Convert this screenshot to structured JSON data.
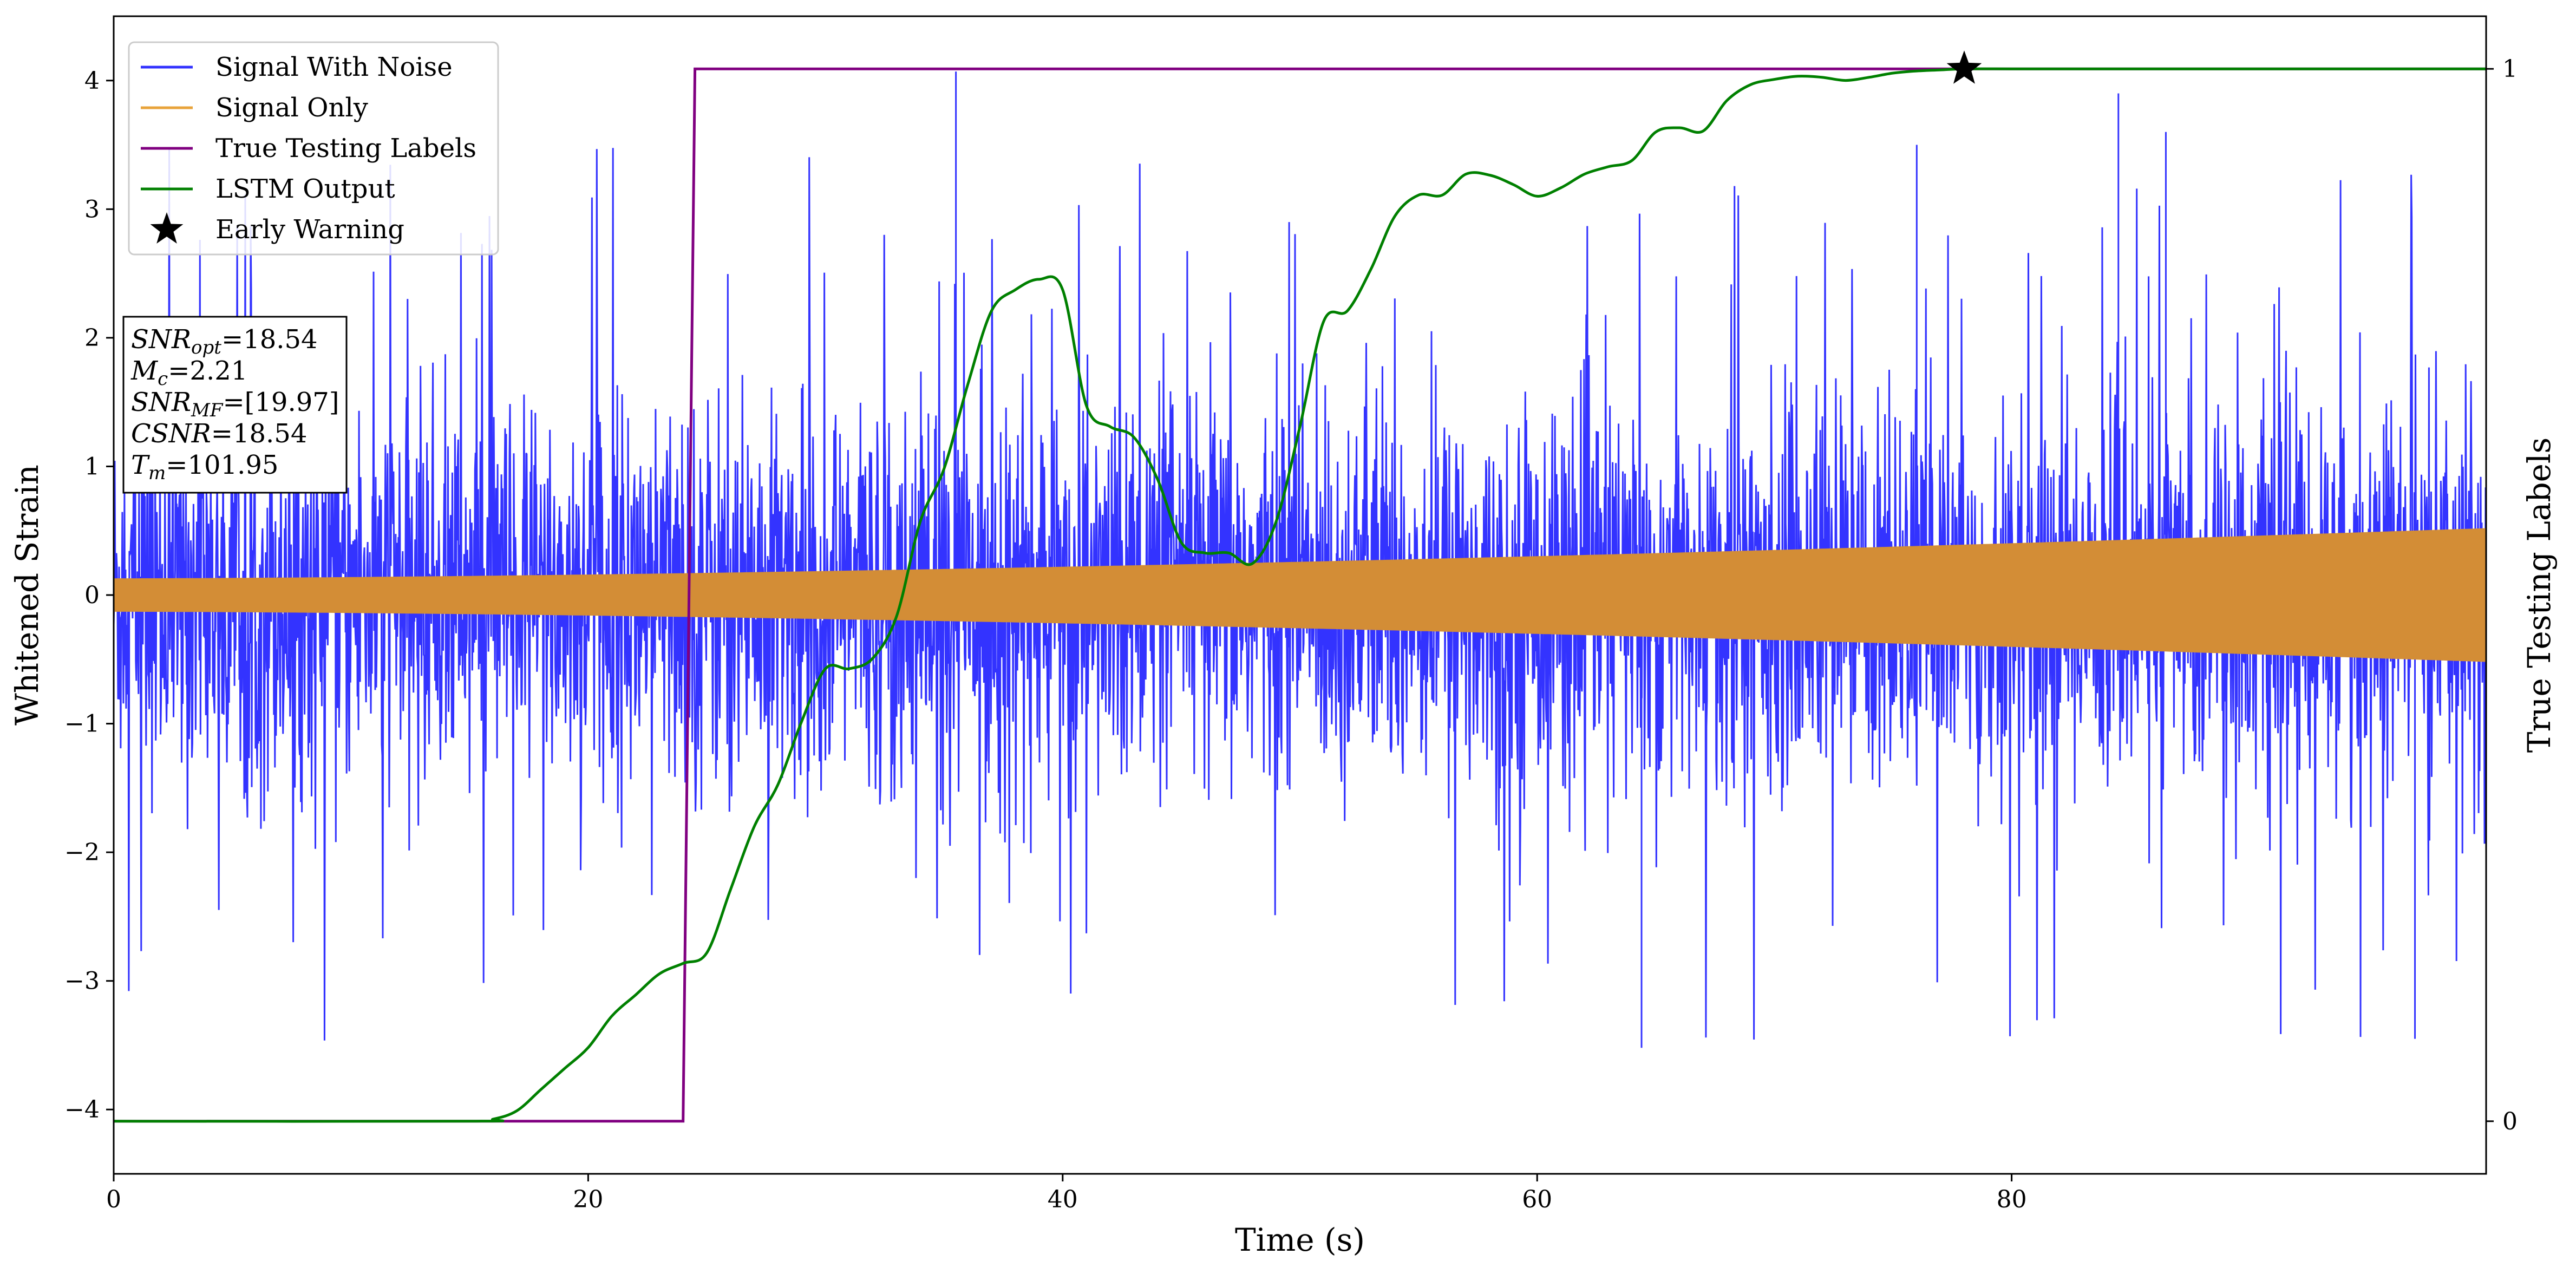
{
  "chart_data": {
    "type": "line",
    "xlabel": "Time (s)",
    "ylabel": "Whitened Strain",
    "y2label": "True Testing Labels",
    "xlim": [
      0,
      100
    ],
    "ylim": [
      -4.5,
      4.5
    ],
    "y2lim": [
      -0.05,
      1.05
    ],
    "xticks": [
      0,
      20,
      40,
      60,
      80
    ],
    "yticks": [
      -4,
      -3,
      -2,
      -1,
      0,
      1,
      2,
      3,
      4
    ],
    "y2ticks": [
      0,
      1
    ],
    "legend_position": "top-left",
    "grid": false,
    "series": [
      {
        "name": "Signal With Noise",
        "color": "#3333ff",
        "description_range": "noise approx. -3.5 to 4.1",
        "envelope": {
          "typical_max": 2.4,
          "typical_min": -2.3,
          "peak_max": 4.07,
          "peak_min": -3.52
        }
      },
      {
        "name": "Signal Only",
        "color": "#e8a33a",
        "amplitude_start": 0.13,
        "amplitude_end": 0.52
      },
      {
        "name": "True Testing Labels",
        "color": "#800080",
        "axis": "right",
        "x": [
          0,
          24,
          24.5,
          100
        ],
        "y": [
          0,
          0,
          1,
          1
        ]
      },
      {
        "name": "LSTM Output",
        "color": "#008000",
        "axis": "right",
        "x": [
          0,
          15,
          16,
          17,
          18,
          19,
          20,
          21,
          22,
          23,
          24,
          25,
          26,
          27,
          28,
          29,
          30,
          31,
          32,
          33,
          34,
          35,
          36,
          37,
          38,
          39,
          40,
          41,
          42,
          43,
          44,
          45,
          46,
          47,
          48,
          49,
          50,
          51,
          52,
          53,
          54,
          55,
          56,
          57,
          58,
          59,
          60,
          61,
          62,
          63,
          64,
          65,
          66,
          67,
          68,
          69,
          70,
          71,
          72,
          73,
          74,
          75,
          76,
          77,
          78,
          80,
          85,
          90,
          100
        ],
        "y": [
          0,
          0,
          0.002,
          0.01,
          0.03,
          0.05,
          0.07,
          0.1,
          0.12,
          0.14,
          0.15,
          0.16,
          0.22,
          0.28,
          0.32,
          0.38,
          0.43,
          0.43,
          0.44,
          0.48,
          0.57,
          0.62,
          0.7,
          0.77,
          0.79,
          0.8,
          0.79,
          0.68,
          0.66,
          0.65,
          0.61,
          0.55,
          0.54,
          0.54,
          0.53,
          0.57,
          0.66,
          0.76,
          0.77,
          0.81,
          0.86,
          0.88,
          0.88,
          0.9,
          0.899,
          0.89,
          0.879,
          0.887,
          0.9,
          0.907,
          0.913,
          0.94,
          0.944,
          0.941,
          0.97,
          0.985,
          0.99,
          0.993,
          0.992,
          0.989,
          0.992,
          0.996,
          0.998,
          0.999,
          1.0,
          1.0,
          1.0,
          1.0,
          1.0
        ]
      },
      {
        "name": "Early Warning",
        "marker": "star",
        "color": "#000000",
        "axis": "right",
        "x": [
          78
        ],
        "y": [
          1.0
        ]
      }
    ]
  },
  "info_box": {
    "lines": [
      {
        "base": "SNR",
        "sub": "opt",
        "value": "=18.54"
      },
      {
        "base": "M",
        "sub": "c",
        "value": "=2.21"
      },
      {
        "base": "SNR",
        "sub": "MF",
        "value": "=[19.97]"
      },
      {
        "base": "CSNR",
        "sub": "",
        "value": "=18.54"
      },
      {
        "base": "T",
        "sub": "m",
        "value": "=101.95"
      }
    ]
  }
}
